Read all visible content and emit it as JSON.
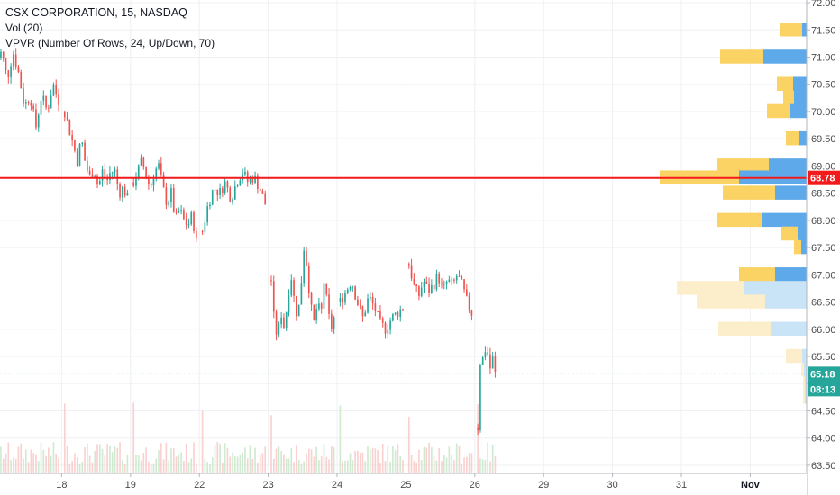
{
  "legend": {
    "title": "CSX CORPORATION, 15, NASDAQ",
    "volume": "Vol (20)",
    "vpvr": "VPVR (Number Of Rows, 24, Up/Down, 70)"
  },
  "colors": {
    "up": "#26a69a",
    "down": "#ef5350",
    "vpvr_up": "#5da9e9",
    "vpvr_down": "#fbd264",
    "vpvr_up_light": "#c9e3f7",
    "vpvr_down_light": "#fdeecb",
    "hline": "#f21a1a",
    "last_price": "#26a69a"
  },
  "chart_data": {
    "type": "candlestick",
    "y_axis": {
      "min": 63.35,
      "max": 72.05,
      "ticks": [
        "63.50",
        "64.00",
        "64.50",
        "65.00",
        "65.50",
        "66.00",
        "66.50",
        "67.00",
        "67.50",
        "68.00",
        "68.50",
        "69.00",
        "69.50",
        "70.00",
        "70.50",
        "71.00",
        "71.50",
        "72.00"
      ]
    },
    "x_axis": {
      "ticks": [
        {
          "label": "18",
          "day": 1,
          "bold": false
        },
        {
          "label": "19",
          "day": 2,
          "bold": false
        },
        {
          "label": "22",
          "day": 3,
          "bold": false
        },
        {
          "label": "23",
          "day": 4,
          "bold": false
        },
        {
          "label": "24",
          "day": 5,
          "bold": false
        },
        {
          "label": "25",
          "day": 6,
          "bold": false
        },
        {
          "label": "26",
          "day": 7,
          "bold": false
        },
        {
          "label": "29",
          "day": 8,
          "bold": false
        },
        {
          "label": "30",
          "day": 9,
          "bold": false
        },
        {
          "label": "31",
          "day": 10,
          "bold": false
        },
        {
          "label": "Nov",
          "day": 11,
          "bold": true
        }
      ]
    },
    "horizontal_line": {
      "value": 68.78,
      "label": "68.78"
    },
    "last_price": {
      "value": 65.18,
      "label": "65.18",
      "countdown": "08:13"
    },
    "sessions": [
      {
        "day": 0,
        "points": [
          70.9,
          71.1,
          70.6,
          71.1,
          70.7,
          70.1,
          70.3,
          69.7,
          70.3,
          70.0,
          70.5,
          70.2
        ]
      },
      {
        "day": 1,
        "points": [
          70.0,
          69.7,
          69.4,
          69.1,
          69.5,
          69.0,
          68.8,
          68.95,
          68.6,
          68.9,
          68.7,
          68.9,
          68.9,
          68.5,
          68.6,
          68.4
        ]
      },
      {
        "day": 2,
        "points": [
          68.7,
          68.9,
          69.1,
          68.8,
          68.6,
          68.9,
          69.0,
          68.6,
          68.3,
          68.5,
          68.0,
          68.2,
          68.0,
          67.9,
          68.1,
          67.6
        ]
      },
      {
        "day": 3,
        "points": [
          67.8,
          68.3,
          68.6,
          68.5,
          68.7,
          68.4,
          68.7,
          68.9,
          68.7,
          68.8,
          68.6,
          68.3
        ]
      },
      {
        "day": 4,
        "points": [
          66.9,
          66.0,
          65.9,
          66.3,
          66.0,
          66.6,
          67.0,
          66.5,
          66.2,
          66.8,
          67.6,
          67.0,
          66.4,
          66.1,
          66.5,
          66.2,
          66.9,
          66.4,
          66.0,
          66.2
        ]
      },
      {
        "day": 5,
        "points": [
          66.5,
          66.7,
          66.9,
          66.5,
          66.2,
          66.6,
          66.4,
          66.1,
          66.0,
          66.2,
          66.3,
          66.4
        ]
      },
      {
        "day": 6,
        "points": [
          67.2,
          66.8,
          66.6,
          66.9,
          66.7,
          66.8,
          67.0,
          66.7,
          66.9,
          66.8,
          67.0,
          66.8,
          66.5,
          66.3
        ]
      },
      {
        "day": 7,
        "points": [
          64.2,
          65.6,
          65.4,
          65.8,
          65.2,
          65.5,
          65.18
        ]
      }
    ],
    "volume_profile": [
      {
        "price": 71.5,
        "up": 5,
        "down": 25,
        "light": false
      },
      {
        "price": 71.0,
        "up": 48,
        "down": 48,
        "light": false
      },
      {
        "price": 70.5,
        "up": 15,
        "down": 18,
        "light": false
      },
      {
        "price": 70.25,
        "up": 14,
        "down": 12,
        "light": false
      },
      {
        "price": 70.0,
        "up": 18,
        "down": 26,
        "light": false
      },
      {
        "price": 69.5,
        "up": 8,
        "down": 15,
        "light": false
      },
      {
        "price": 69.0,
        "up": 42,
        "down": 58,
        "light": false
      },
      {
        "price": 68.78,
        "up": 75,
        "down": 88,
        "light": false
      },
      {
        "price": 68.5,
        "up": 35,
        "down": 58,
        "light": false
      },
      {
        "price": 68.0,
        "up": 50,
        "down": 50,
        "light": false
      },
      {
        "price": 67.75,
        "up": 10,
        "down": 18,
        "light": false
      },
      {
        "price": 67.5,
        "up": 6,
        "down": 8,
        "light": false
      },
      {
        "price": 67.0,
        "up": 35,
        "down": 40,
        "light": false
      },
      {
        "price": 66.75,
        "up": 70,
        "down": 74,
        "light": true
      },
      {
        "price": 66.5,
        "up": 46,
        "down": 76,
        "light": true
      },
      {
        "price": 66.0,
        "up": 40,
        "down": 58,
        "light": true
      },
      {
        "price": 65.5,
        "up": 5,
        "down": 18,
        "light": true
      },
      {
        "price": 65.25,
        "up": 3,
        "down": 3,
        "light": true
      },
      {
        "price": 65.0,
        "up": 2,
        "down": 2,
        "light": true
      },
      {
        "price": 64.75,
        "up": 2,
        "down": 2,
        "light": true
      }
    ]
  }
}
